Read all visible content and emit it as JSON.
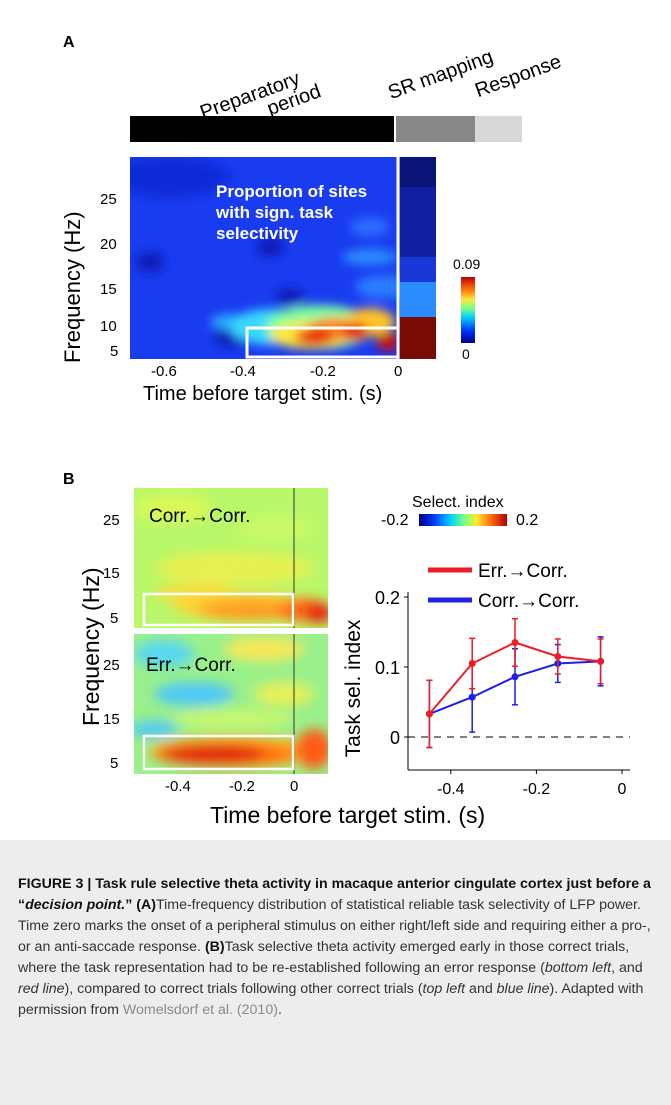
{
  "panel_a": {
    "letter": "A",
    "phases": [
      {
        "label_line1": "Preparatory",
        "label_line2": "period",
        "color": "#000000"
      },
      {
        "label": "SR mapping",
        "color": "#888888"
      },
      {
        "label": "Response",
        "color": "#d8d8d8"
      }
    ],
    "heatmap_text": [
      "Proportion of sites",
      "with sign. task",
      "selectivity"
    ],
    "y_label": "Frequency (Hz)",
    "y_ticks": [
      "25",
      "20",
      "15",
      "10",
      "5"
    ],
    "x_label": "Time before target stim. (s)",
    "x_ticks": [
      "-0.6",
      "-0.4",
      "-0.2",
      "0"
    ],
    "colorbar": {
      "max_label": "0.09",
      "min_label": "0"
    }
  },
  "panel_b": {
    "letter": "B",
    "top_map_label": "Corr.→Corr.",
    "bottom_map_label": "Err.→Corr.",
    "y_label": "Frequency (Hz)",
    "y_ticks_top": [
      "25",
      "15",
      "5"
    ],
    "y_ticks_bottom": [
      "25",
      "15",
      "5"
    ],
    "map_x_ticks": [
      "-0.4",
      "-0.2",
      "0"
    ],
    "x_label": "Time before target stim. (s)",
    "colorbar": {
      "title": "Select. index",
      "min_label": "-0.2",
      "max_label": "0.2"
    }
  },
  "chart_data": {
    "type": "line",
    "x": [
      -0.45,
      -0.35,
      -0.25,
      -0.15,
      -0.05
    ],
    "series": [
      {
        "name": "Err.→Corr.",
        "color": "#ee1c24",
        "values": [
          0.033,
          0.105,
          0.135,
          0.115,
          0.108
        ],
        "err": [
          0.048,
          0.036,
          0.034,
          0.025,
          0.032
        ]
      },
      {
        "name": "Corr.→Corr.",
        "color": "#1f1fe6",
        "values": [
          0.033,
          0.057,
          0.086,
          0.105,
          0.108
        ],
        "err": [
          0.048,
          0.05,
          0.04,
          0.027,
          0.035
        ]
      }
    ],
    "ylabel": "Task sel. index",
    "y_ticks": [
      "0.2",
      "0.1",
      "0"
    ],
    "x_ticks": [
      "-0.4",
      "-0.2",
      "0"
    ],
    "xlim": [
      -0.5,
      0.0
    ],
    "ylim": [
      -0.04,
      0.2
    ]
  },
  "caption": {
    "figure_label": "FIGURE 3 |",
    "title_part1": "Task rule selective theta activity in macaque anterior cingulate cortex just before a “",
    "title_italic": "decision point.",
    "title_part2": "”",
    "a_label": "(A)",
    "a_text": "Time-frequency distribution of statistical reliable task selectivity of LFP power. Time zero marks the onset of a peripheral stimulus on either right/left side and requiring either a pro-, or an anti-saccade response.",
    "b_label": "(B)",
    "b_text_1": "Task selective theta activity emerged early in those correct trials, where the task representation had to be re-established following an error response (",
    "b_italic_1": "bottom left",
    "b_text_2": ", and ",
    "b_italic_2": "red line",
    "b_text_3": "), compared to correct trials following other correct trials (",
    "b_italic_3": "top left",
    "b_text_4": " and ",
    "b_italic_4": "blue line",
    "b_text_5": "). Adapted with permission from ",
    "citation": "Womelsdorf et al. (2010)",
    "b_text_6": "."
  }
}
